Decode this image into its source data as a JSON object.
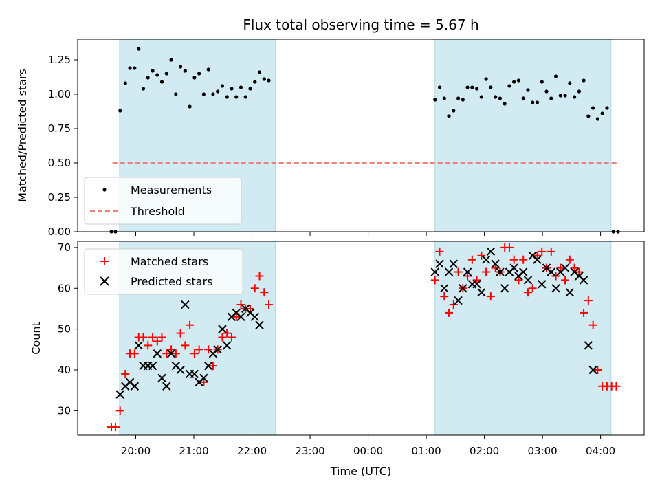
{
  "chart_data": [
    {
      "id": "top",
      "type": "scatter",
      "title": "Flux total observing time = 5.67 h",
      "xlabel": "",
      "ylabel": "Matched/Predicted stars",
      "ylim": [
        0.0,
        1.4
      ],
      "yticks": [
        "0.00",
        "0.25",
        "0.50",
        "0.75",
        "1.00",
        "1.25"
      ],
      "shaded_spans_x": [
        [
          19.72,
          22.4
        ],
        [
          25.15,
          28.18
        ]
      ],
      "threshold": {
        "name": "Threshold",
        "y": 0.5,
        "x": [
          19.6,
          28.3
        ],
        "color": "#f08080"
      },
      "legend": {
        "placement": "lower-left",
        "entries": [
          "Measurements",
          "Threshold"
        ]
      },
      "series": [
        {
          "name": "Measurements",
          "marker": "dot",
          "color": "#000000",
          "points": [
            [
              19.58,
              0.0
            ],
            [
              19.65,
              0.0
            ],
            [
              19.73,
              0.88
            ],
            [
              19.82,
              1.08
            ],
            [
              19.9,
              1.19
            ],
            [
              19.98,
              1.19
            ],
            [
              20.05,
              1.33
            ],
            [
              20.13,
              1.04
            ],
            [
              20.21,
              1.12
            ],
            [
              20.29,
              1.17
            ],
            [
              20.37,
              1.14
            ],
            [
              20.45,
              1.09
            ],
            [
              20.53,
              1.15
            ],
            [
              20.61,
              1.25
            ],
            [
              20.69,
              1.0
            ],
            [
              20.77,
              1.2
            ],
            [
              20.85,
              1.17
            ],
            [
              20.93,
              0.91
            ],
            [
              21.01,
              1.12
            ],
            [
              21.09,
              1.15
            ],
            [
              21.17,
              1.0
            ],
            [
              21.25,
              1.18
            ],
            [
              21.33,
              1.0
            ],
            [
              21.41,
              1.02
            ],
            [
              21.49,
              1.06
            ],
            [
              21.57,
              0.98
            ],
            [
              21.65,
              1.04
            ],
            [
              21.73,
              0.98
            ],
            [
              21.81,
              1.05
            ],
            [
              21.89,
              0.98
            ],
            [
              21.97,
              1.04
            ],
            [
              22.05,
              1.09
            ],
            [
              22.13,
              1.16
            ],
            [
              22.21,
              1.11
            ],
            [
              22.29,
              1.1
            ],
            [
              25.15,
              0.96
            ],
            [
              25.23,
              1.05
            ],
            [
              25.31,
              0.97
            ],
            [
              25.39,
              0.84
            ],
            [
              25.47,
              0.88
            ],
            [
              25.55,
              0.97
            ],
            [
              25.63,
              0.96
            ],
            [
              25.71,
              1.05
            ],
            [
              25.79,
              1.05
            ],
            [
              25.87,
              1.04
            ],
            [
              25.95,
              0.98
            ],
            [
              26.03,
              1.11
            ],
            [
              26.11,
              1.05
            ],
            [
              26.19,
              0.98
            ],
            [
              26.27,
              0.97
            ],
            [
              26.35,
              0.93
            ],
            [
              26.43,
              1.06
            ],
            [
              26.51,
              1.09
            ],
            [
              26.59,
              1.1
            ],
            [
              26.67,
              0.97
            ],
            [
              26.75,
              1.03
            ],
            [
              26.83,
              0.94
            ],
            [
              26.91,
              0.94
            ],
            [
              26.99,
              1.09
            ],
            [
              27.07,
              1.02
            ],
            [
              27.15,
              0.97
            ],
            [
              27.23,
              1.13
            ],
            [
              27.31,
              0.99
            ],
            [
              27.39,
              0.99
            ],
            [
              27.47,
              1.08
            ],
            [
              27.55,
              0.98
            ],
            [
              27.63,
              1.02
            ],
            [
              27.71,
              1.1
            ],
            [
              27.79,
              0.84
            ],
            [
              27.87,
              0.9
            ],
            [
              27.95,
              0.82
            ],
            [
              28.03,
              0.86
            ],
            [
              28.11,
              0.9
            ],
            [
              28.22,
              0.0
            ],
            [
              28.3,
              0.0
            ]
          ]
        }
      ]
    },
    {
      "id": "bottom",
      "type": "scatter",
      "title": "",
      "xlabel": "Time (UTC)",
      "ylabel": "Count",
      "ylim": [
        24,
        71.5
      ],
      "yticks": [
        "30",
        "40",
        "50",
        "60",
        "70"
      ],
      "xlim": [
        19.0,
        28.75
      ],
      "xticks": [
        {
          "x": 20,
          "label": "20:00"
        },
        {
          "x": 21,
          "label": "21:00"
        },
        {
          "x": 22,
          "label": "22:00"
        },
        {
          "x": 23,
          "label": "23:00"
        },
        {
          "x": 24,
          "label": "00:00"
        },
        {
          "x": 25,
          "label": "01:00"
        },
        {
          "x": 26,
          "label": "02:00"
        },
        {
          "x": 27,
          "label": "03:00"
        },
        {
          "x": 28,
          "label": "04:00"
        }
      ],
      "shaded_spans_x": [
        [
          19.72,
          22.4
        ],
        [
          25.15,
          28.18
        ]
      ],
      "legend": {
        "placement": "upper-left",
        "entries": [
          "Matched stars",
          "Predicted stars"
        ]
      },
      "series": [
        {
          "name": "Matched stars",
          "marker": "plus",
          "color": "#ff0000",
          "points": [
            [
              19.58,
              26
            ],
            [
              19.65,
              26
            ],
            [
              19.73,
              30
            ],
            [
              19.82,
              39
            ],
            [
              19.9,
              44
            ],
            [
              19.98,
              44
            ],
            [
              20.05,
              48
            ],
            [
              20.13,
              48
            ],
            [
              20.21,
              46
            ],
            [
              20.29,
              48
            ],
            [
              20.37,
              47
            ],
            [
              20.45,
              48
            ],
            [
              20.53,
              44
            ],
            [
              20.61,
              45
            ],
            [
              20.69,
              44
            ],
            [
              20.77,
              49
            ],
            [
              20.85,
              46
            ],
            [
              20.93,
              51
            ],
            [
              21.01,
              44
            ],
            [
              21.09,
              45
            ],
            [
              21.17,
              37
            ],
            [
              21.25,
              45
            ],
            [
              21.33,
              41
            ],
            [
              21.41,
              45
            ],
            [
              21.49,
              48
            ],
            [
              21.57,
              49
            ],
            [
              21.65,
              48
            ],
            [
              21.73,
              53
            ],
            [
              21.81,
              56
            ],
            [
              21.89,
              55
            ],
            [
              21.97,
              55
            ],
            [
              22.05,
              60
            ],
            [
              22.13,
              63
            ],
            [
              22.21,
              59
            ],
            [
              22.29,
              56
            ],
            [
              25.15,
              62
            ],
            [
              25.23,
              69
            ],
            [
              25.31,
              58
            ],
            [
              25.39,
              54
            ],
            [
              25.47,
              56
            ],
            [
              25.55,
              64
            ],
            [
              25.63,
              60
            ],
            [
              25.71,
              63
            ],
            [
              25.79,
              67
            ],
            [
              25.87,
              62
            ],
            [
              25.95,
              68
            ],
            [
              26.03,
              64
            ],
            [
              26.11,
              58
            ],
            [
              26.19,
              65
            ],
            [
              26.27,
              64
            ],
            [
              26.35,
              70
            ],
            [
              26.43,
              70
            ],
            [
              26.51,
              67
            ],
            [
              26.59,
              62
            ],
            [
              26.67,
              67
            ],
            [
              26.75,
              59
            ],
            [
              26.83,
              60
            ],
            [
              26.91,
              68
            ],
            [
              26.99,
              69
            ],
            [
              27.07,
              65
            ],
            [
              27.15,
              69
            ],
            [
              27.23,
              63
            ],
            [
              27.31,
              65
            ],
            [
              27.39,
              62
            ],
            [
              27.47,
              67
            ],
            [
              27.55,
              65
            ],
            [
              27.63,
              64
            ],
            [
              27.71,
              54
            ],
            [
              27.79,
              57
            ],
            [
              27.87,
              51
            ],
            [
              27.95,
              40
            ],
            [
              28.03,
              36
            ],
            [
              28.11,
              36
            ],
            [
              28.19,
              36
            ],
            [
              28.27,
              36
            ]
          ]
        },
        {
          "name": "Predicted stars",
          "marker": "x",
          "color": "#000000",
          "points": [
            [
              19.73,
              34
            ],
            [
              19.82,
              36
            ],
            [
              19.9,
              37
            ],
            [
              19.98,
              36
            ],
            [
              20.05,
              46
            ],
            [
              20.13,
              41
            ],
            [
              20.21,
              41
            ],
            [
              20.29,
              41
            ],
            [
              20.37,
              44
            ],
            [
              20.45,
              38
            ],
            [
              20.53,
              36
            ],
            [
              20.61,
              44
            ],
            [
              20.69,
              41
            ],
            [
              20.77,
              40
            ],
            [
              20.85,
              56
            ],
            [
              20.93,
              39
            ],
            [
              21.01,
              39
            ],
            [
              21.09,
              37
            ],
            [
              21.17,
              38
            ],
            [
              21.25,
              41
            ],
            [
              21.33,
              44
            ],
            [
              21.41,
              45
            ],
            [
              21.49,
              50
            ],
            [
              21.57,
              46
            ],
            [
              21.65,
              53
            ],
            [
              21.73,
              54
            ],
            [
              21.81,
              53
            ],
            [
              21.89,
              55
            ],
            [
              21.97,
              54
            ],
            [
              22.05,
              53
            ],
            [
              22.13,
              51
            ],
            [
              25.15,
              64
            ],
            [
              25.23,
              66
            ],
            [
              25.31,
              60
            ],
            [
              25.39,
              64
            ],
            [
              25.47,
              66
            ],
            [
              25.55,
              57
            ],
            [
              25.63,
              60
            ],
            [
              25.71,
              64
            ],
            [
              25.79,
              61
            ],
            [
              25.87,
              61
            ],
            [
              25.95,
              59
            ],
            [
              26.03,
              67
            ],
            [
              26.11,
              69
            ],
            [
              26.19,
              66
            ],
            [
              26.27,
              64
            ],
            [
              26.35,
              60
            ],
            [
              26.43,
              64
            ],
            [
              26.51,
              65
            ],
            [
              26.59,
              63
            ],
            [
              26.67,
              64
            ],
            [
              26.75,
              62
            ],
            [
              26.83,
              68
            ],
            [
              26.91,
              67
            ],
            [
              26.99,
              61
            ],
            [
              27.07,
              65
            ],
            [
              27.15,
              64
            ],
            [
              27.23,
              60
            ],
            [
              27.31,
              64
            ],
            [
              27.39,
              65
            ],
            [
              27.47,
              59
            ],
            [
              27.55,
              64
            ],
            [
              27.63,
              63
            ],
            [
              27.71,
              62
            ],
            [
              27.79,
              46
            ],
            [
              27.87,
              40
            ]
          ]
        }
      ]
    }
  ],
  "colors": {
    "shade": "#add8e6",
    "matched": "#ff0000",
    "predicted": "#000000",
    "threshold": "#f08080"
  }
}
